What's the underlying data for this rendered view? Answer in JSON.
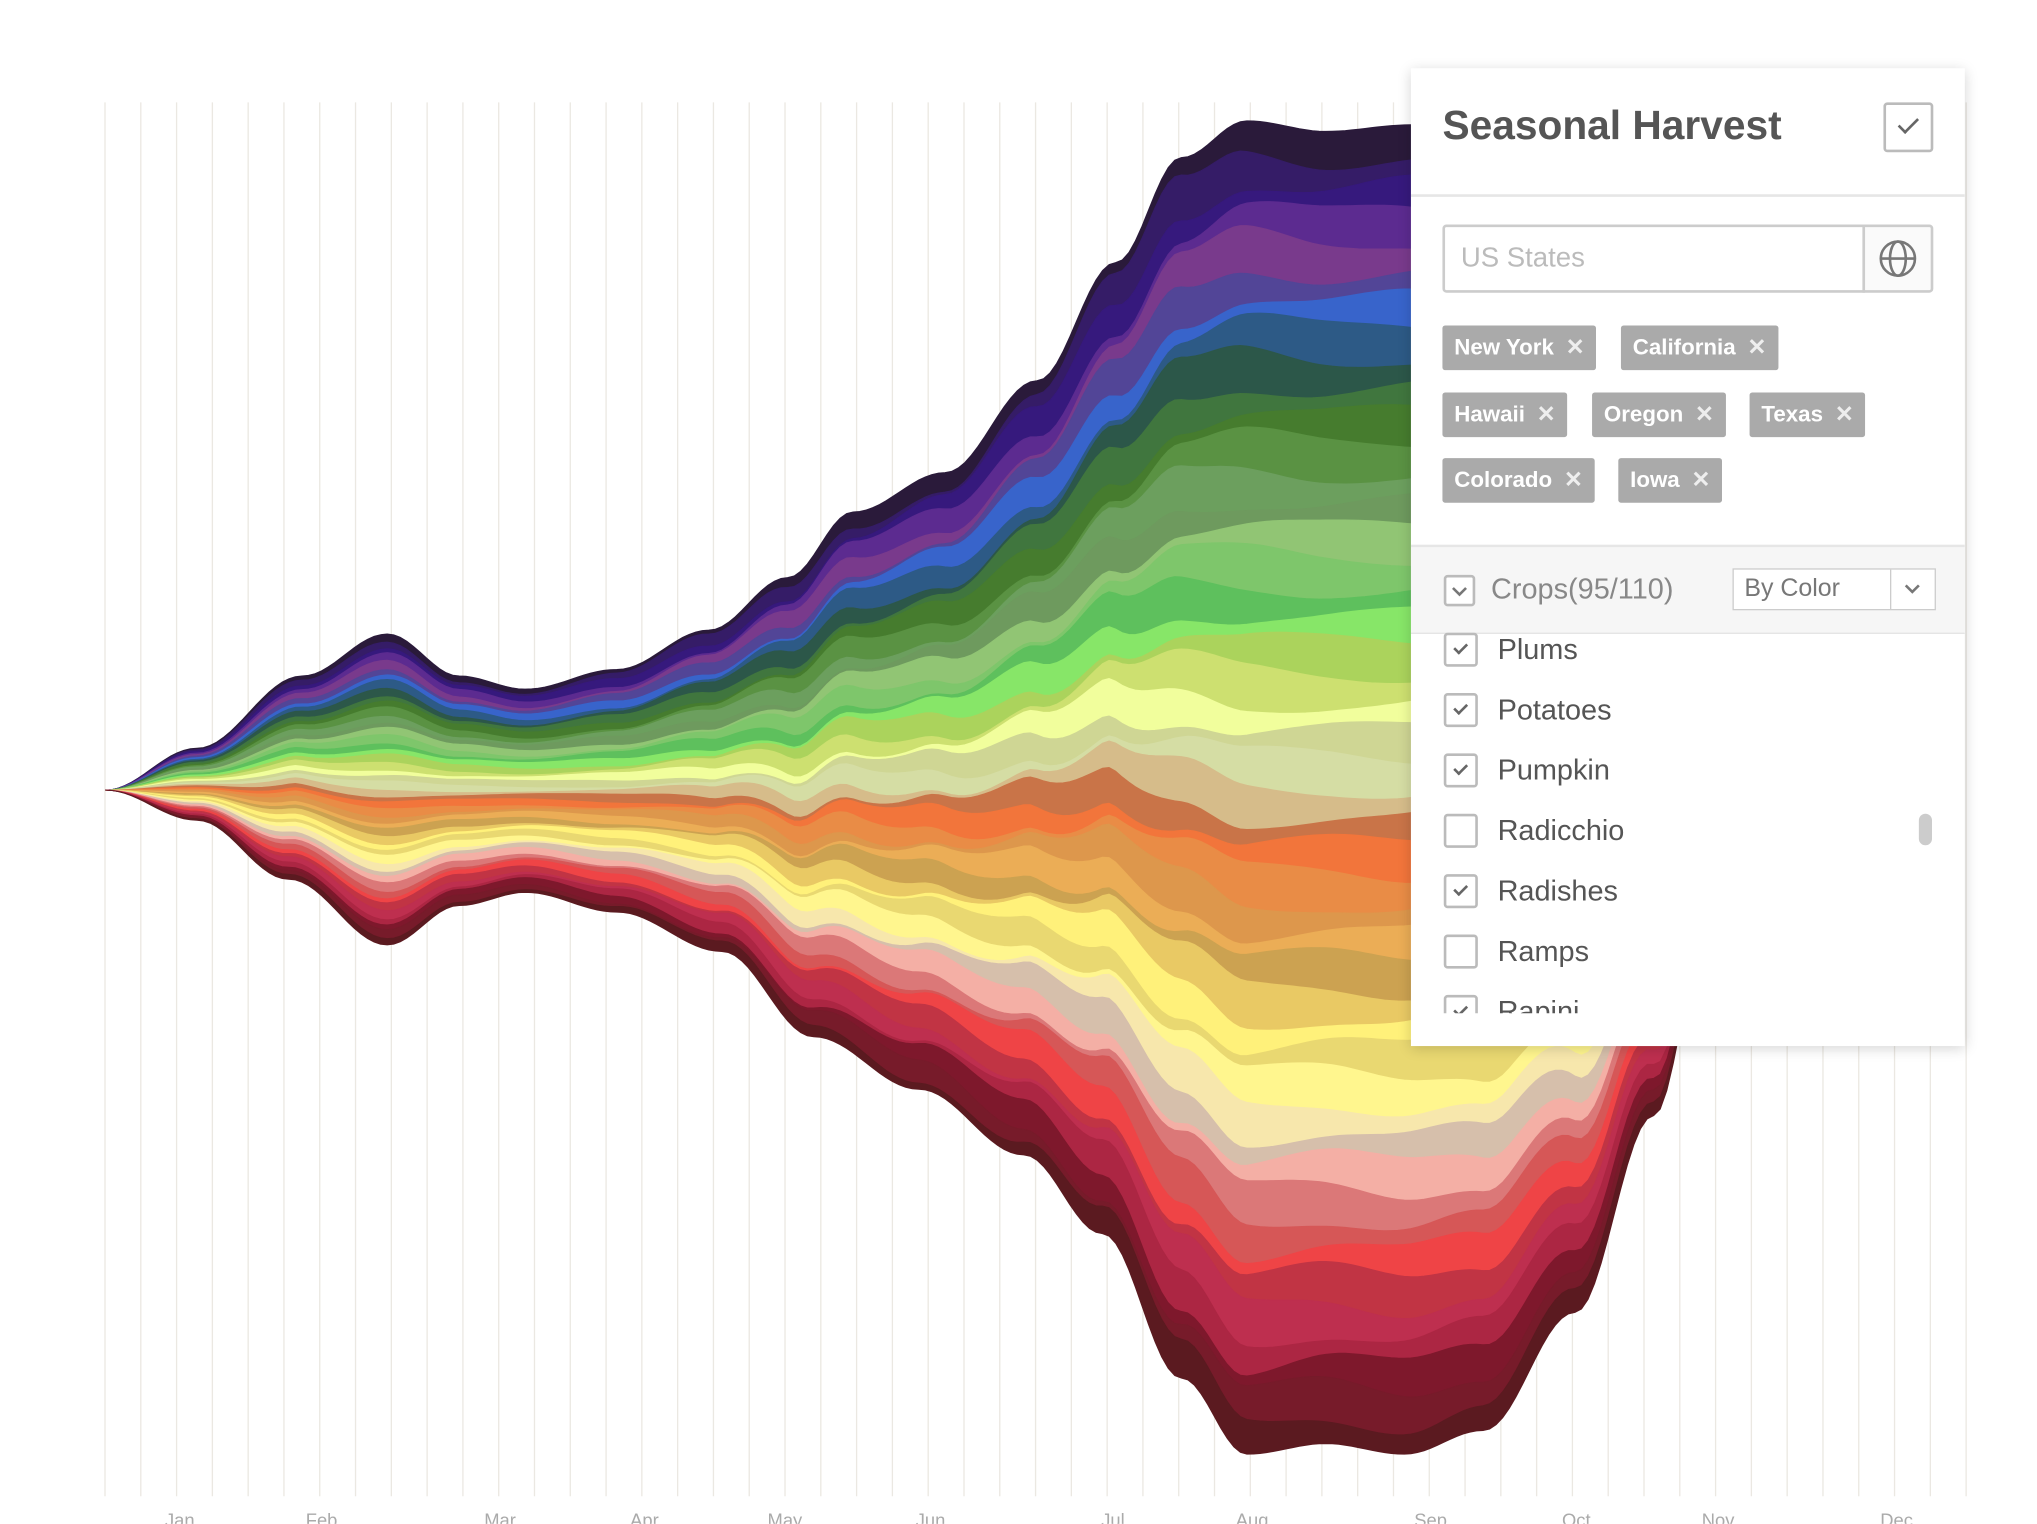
{
  "chart": {
    "x_labels": [
      "Jan",
      "Feb",
      "Mar",
      "Apr",
      "May",
      "Jun",
      "Jul",
      "Aug",
      "Sep",
      "Oct",
      "Nov",
      "Dec"
    ]
  },
  "panel": {
    "title": "Seasonal Harvest",
    "search_placeholder": "US States",
    "tags": [
      "New York",
      "California",
      "Hawaii",
      "Oregon",
      "Texas",
      "Colorado",
      "Iowa"
    ],
    "crops_label": "Crops(95/110)",
    "sort": "By Color",
    "crops": [
      {
        "name": "Plums",
        "checked": true
      },
      {
        "name": "Potatoes",
        "checked": true
      },
      {
        "name": "Pumpkin",
        "checked": true
      },
      {
        "name": "Radicchio",
        "checked": false
      },
      {
        "name": "Radishes",
        "checked": true
      },
      {
        "name": "Ramps",
        "checked": false
      },
      {
        "name": "Rapini",
        "checked": true
      }
    ]
  }
}
